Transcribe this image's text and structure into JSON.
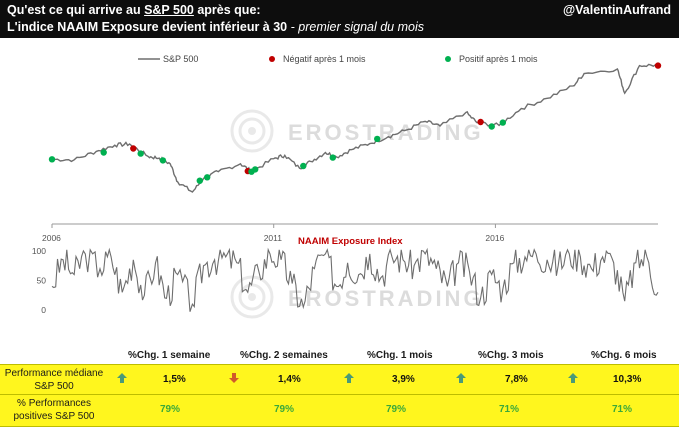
{
  "header": {
    "line1_pre": "Qu'est ce qui arrive au ",
    "line1_ticker": "S&P 500",
    "line1_post": " après que:",
    "line2_bold": "L'indice NAAIM Exposure devient inférieur à 30",
    "line2_italic": " - premier signal du mois",
    "handle": "@ValentinAufrand"
  },
  "watermark": "EROSTRADING",
  "colors": {
    "sp500_line": "#6e6e6e",
    "negative_marker": "#c00000",
    "positive_marker": "#00b050",
    "table_fill": "#fff61e",
    "arrow_up": "#4a9a78",
    "arrow_down": "#d05a2a"
  },
  "chart_data": [
    {
      "type": "line",
      "title": "",
      "x_tick_labels": [
        "2006",
        "2011",
        "2016"
      ],
      "x_range": [
        "2006-01",
        "2019-09"
      ],
      "series": [
        {
          "name": "S&P 500",
          "x": [
            "2006-01",
            "2006-07",
            "2007-01",
            "2007-06",
            "2007-10",
            "2008-03",
            "2008-06",
            "2008-09",
            "2008-11",
            "2009-03",
            "2009-06",
            "2009-10",
            "2010-04",
            "2010-07",
            "2011-01",
            "2011-04",
            "2011-08",
            "2011-11",
            "2012-03",
            "2012-06",
            "2012-10",
            "2013-03",
            "2013-08",
            "2014-01",
            "2014-06",
            "2014-10",
            "2015-05",
            "2015-08",
            "2016-02",
            "2016-08",
            "2017-03",
            "2017-10",
            "2018-01",
            "2018-10",
            "2018-12",
            "2019-04",
            "2019-09"
          ],
          "y": [
            1280,
            1270,
            1420,
            1530,
            1550,
            1330,
            1300,
            1200,
            880,
            700,
            940,
            1060,
            1200,
            1060,
            1290,
            1350,
            1120,
            1240,
            1400,
            1320,
            1450,
            1560,
            1680,
            1800,
            1950,
            1870,
            2110,
            1930,
            1880,
            2180,
            2360,
            2580,
            2800,
            2880,
            2450,
            2940,
            2950
          ]
        }
      ],
      "markers": [
        {
          "name": "Négatif après 1 mois",
          "points": [
            {
              "x": "2007-11",
              "y": 1470
            },
            {
              "x": "2010-06",
              "y": 1070
            },
            {
              "x": "2015-09",
              "y": 1940
            },
            {
              "x": "2019-09",
              "y": 2940
            }
          ]
        },
        {
          "name": "Positif après 1 mois",
          "points": [
            {
              "x": "2006-01",
              "y": 1280
            },
            {
              "x": "2007-03",
              "y": 1400
            },
            {
              "x": "2008-01",
              "y": 1380
            },
            {
              "x": "2008-07",
              "y": 1260
            },
            {
              "x": "2009-05",
              "y": 900
            },
            {
              "x": "2009-07",
              "y": 960
            },
            {
              "x": "2010-07",
              "y": 1060
            },
            {
              "x": "2010-08",
              "y": 1100
            },
            {
              "x": "2011-09",
              "y": 1160
            },
            {
              "x": "2012-05",
              "y": 1310
            },
            {
              "x": "2013-05",
              "y": 1640
            },
            {
              "x": "2015-12",
              "y": 1860
            },
            {
              "x": "2016-03",
              "y": 1930
            }
          ]
        }
      ],
      "legend_position": "top-center"
    },
    {
      "type": "line",
      "title": "NAAIM Exposure Index",
      "y_tick_labels": [
        "100",
        "50",
        "0"
      ],
      "ylim": [
        -10,
        105
      ],
      "series": [
        {
          "name": "",
          "x": [
            "2006-01",
            "2006-04",
            "2006-07",
            "2006-10",
            "2007-02",
            "2007-05",
            "2007-08",
            "2007-11",
            "2008-02",
            "2008-05",
            "2008-08",
            "2008-11",
            "2009-03",
            "2009-06",
            "2009-09",
            "2009-12",
            "2010-03",
            "2010-06",
            "2010-09",
            "2010-12",
            "2011-03",
            "2011-06",
            "2011-09",
            "2011-12",
            "2012-03",
            "2012-06",
            "2012-09",
            "2012-12",
            "2013-03",
            "2013-06",
            "2013-09",
            "2013-12",
            "2014-03",
            "2014-06",
            "2014-09",
            "2014-12",
            "2015-03",
            "2015-06",
            "2015-09",
            "2015-12",
            "2016-03",
            "2016-06",
            "2016-09",
            "2016-12",
            "2017-03",
            "2017-06",
            "2017-09",
            "2017-12",
            "2018-03",
            "2018-06",
            "2018-09",
            "2018-12",
            "2019-03",
            "2019-06",
            "2019-09"
          ],
          "y": [
            40,
            85,
            60,
            95,
            70,
            90,
            30,
            85,
            25,
            80,
            20,
            60,
            10,
            75,
            85,
            90,
            80,
            30,
            65,
            95,
            85,
            45,
            5,
            70,
            95,
            40,
            80,
            60,
            95,
            55,
            90,
            85,
            75,
            95,
            70,
            40,
            80,
            65,
            20,
            60,
            35,
            80,
            90,
            95,
            85,
            75,
            95,
            90,
            70,
            90,
            80,
            15,
            80,
            90,
            30
          ]
        }
      ]
    }
  ],
  "table": {
    "headers": [
      "%Chg. 1 semaine",
      "%Chg. 2 semaines",
      "%Chg. 1 mois",
      "%Chg. 3 mois",
      "%Chg. 6 mois"
    ],
    "rows": [
      {
        "label_line1": "Performance médiane",
        "label_line2": "S&P 500",
        "values": [
          "1,5%",
          "1,4%",
          "3,9%",
          "7,8%",
          "10,3%"
        ],
        "arrows": [
          "up",
          "down",
          "up",
          "up",
          "up"
        ]
      },
      {
        "label_line1": "% Performances",
        "label_line2": "positives S&P 500",
        "values": [
          "79%",
          "79%",
          "79%",
          "71%",
          "71%"
        ]
      }
    ]
  }
}
